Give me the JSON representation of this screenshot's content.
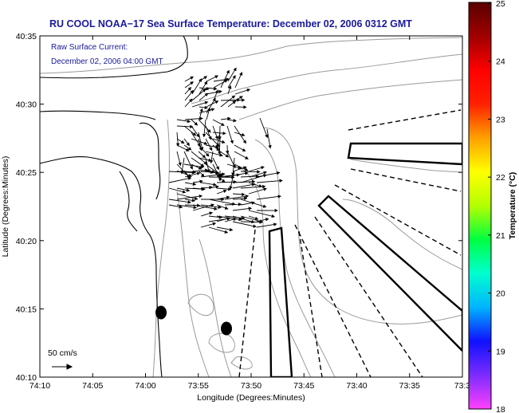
{
  "title": "RU COOL  NOAA−17  Sea Surface Temperature:  December 02, 2006 0312 GMT",
  "current_note": {
    "line1": "Raw Surface Current:",
    "line2": "December 02, 2006 04:00 GMT"
  },
  "scale_label": "50 cm/s",
  "x_axis": {
    "label": "Longitude (Degrees:Minutes)",
    "ticks": [
      "74:10",
      "74:05",
      "74:00",
      "73:55",
      "73:50",
      "73:45",
      "73:40",
      "73:35",
      "73:3"
    ]
  },
  "y_axis": {
    "label": "Latitude (Degrees:Minutes)",
    "ticks": [
      "40:35",
      "40:30",
      "40:25",
      "40:20",
      "40:15",
      "40:10"
    ]
  },
  "colorbar": {
    "label": "Temperature (°C)",
    "ticks": [
      "25",
      "24",
      "23",
      "22",
      "21",
      "20",
      "19",
      "18"
    ],
    "min": 18,
    "max": 25,
    "colors": [
      "#ff40ff",
      "#7c2cff",
      "#1010ff",
      "#00b4ff",
      "#00ffd0",
      "#00ff40",
      "#b4ff00",
      "#ffff00",
      "#ffa000",
      "#ff2000",
      "#ff0000",
      "#a00000",
      "#5a0000"
    ]
  },
  "colors": {
    "title": "#1a1a9c",
    "contour": "#9a9a9a",
    "coast": "#000000"
  }
}
